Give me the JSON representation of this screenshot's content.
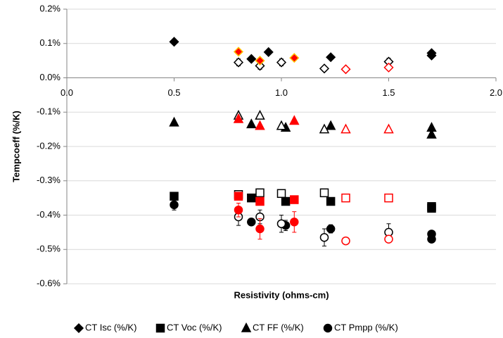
{
  "chart_data": {
    "type": "scatter",
    "x_label": "Resistivity (ohms-cm)",
    "y_label": "Tempcoeff (%/K)",
    "xlim": [
      0,
      2
    ],
    "ylim": [
      -0.6,
      0.2
    ],
    "xticks": [
      {
        "value": 0,
        "label": "0.0"
      },
      0.5,
      {
        "value": 1,
        "label": "1.0"
      },
      1.5,
      {
        "value": 2,
        "label": "2.0"
      }
    ],
    "yticks": [
      {
        "value": 0.2,
        "label": "0.2%"
      },
      {
        "value": 0.1,
        "label": "0.1%"
      },
      {
        "value": 0,
        "label": "0.0%"
      },
      {
        "value": -0.1,
        "label": "-0.1%"
      },
      {
        "value": -0.2,
        "label": "-0.2%"
      },
      {
        "value": -0.3,
        "label": "-0.3%"
      },
      {
        "value": -0.4,
        "label": "-0.4%"
      },
      {
        "value": -0.5,
        "label": "-0.5%"
      },
      {
        "value": -0.6,
        "label": "-0.6%"
      }
    ],
    "grid": true,
    "legend": "bottom",
    "series": [
      {
        "name": "CT Isc (%/K)",
        "marker": "diamond",
        "fill": "#000000",
        "stroke": "#000000",
        "x": [
          0.5,
          0.86,
          0.94,
          1.23,
          1.7,
          1.7
        ],
        "values": [
          0.105,
          0.055,
          0.075,
          0.06,
          0.072,
          0.065
        ]
      },
      {
        "name": "CT Voc (%/K)",
        "marker": "square",
        "fill": "#000000",
        "stroke": "#000000",
        "x": [
          0.5,
          0.86,
          1.02,
          1.23,
          1.7,
          1.7
        ],
        "values": [
          -0.345,
          -0.35,
          -0.36,
          -0.36,
          -0.375,
          -0.38
        ]
      },
      {
        "name": "CT FF (%/K)",
        "marker": "triangle",
        "fill": "#000000",
        "stroke": "#000000",
        "x": [
          0.5,
          0.86,
          1.02,
          1.23,
          1.7,
          1.7
        ],
        "values": [
          -0.13,
          -0.135,
          -0.145,
          -0.14,
          -0.145,
          -0.165
        ]
      },
      {
        "name": "CT Pmpp (%/K)",
        "marker": "circle",
        "fill": "#000000",
        "stroke": "#000000",
        "x": [
          0.5,
          0.86,
          1.02,
          1.23,
          1.7,
          1.7
        ],
        "values": [
          -0.37,
          -0.42,
          -0.43,
          -0.44,
          -0.455,
          -0.47
        ],
        "errors": [
          0.015,
          0.01,
          0.015,
          0.012,
          0.01,
          0.01
        ]
      },
      {
        "marker": "diamond",
        "fill": "#ffffff",
        "stroke": "#000000",
        "x": [
          0.8,
          0.9,
          1.0,
          1.2,
          1.5
        ],
        "values": [
          0.045,
          0.035,
          0.045,
          0.027,
          0.047
        ],
        "errors": [
          0.01,
          0.01,
          0.01,
          0.008,
          0.01
        ]
      },
      {
        "marker": "diamond",
        "fill": "#ff0000",
        "stroke": "#ffc000",
        "x": [
          0.8,
          0.9,
          1.06
        ],
        "values": [
          0.076,
          0.05,
          0.058
        ]
      },
      {
        "marker": "diamond",
        "fill": "#ffffff",
        "stroke": "#ff0000",
        "x": [
          1.3,
          1.5
        ],
        "values": [
          0.025,
          0.03
        ]
      },
      {
        "marker": "triangle",
        "fill": "#ffffff",
        "stroke": "#000000",
        "x": [
          0.8,
          0.9,
          1.0,
          1.2
        ],
        "values": [
          -0.11,
          -0.11,
          -0.14,
          -0.15
        ]
      },
      {
        "marker": "triangle",
        "fill": "#ff0000",
        "stroke": "#ff0000",
        "x": [
          0.8,
          0.9,
          1.06
        ],
        "values": [
          -0.12,
          -0.14,
          -0.125
        ]
      },
      {
        "marker": "triangle",
        "fill": "#ffffff",
        "stroke": "#ff0000",
        "x": [
          1.3,
          1.5
        ],
        "values": [
          -0.15,
          -0.15
        ]
      },
      {
        "marker": "square",
        "fill": "#ffffff",
        "stroke": "#000000",
        "x": [
          0.8,
          0.9,
          1.0,
          1.2
        ],
        "values": [
          -0.34,
          -0.335,
          -0.337,
          -0.335
        ]
      },
      {
        "marker": "square",
        "fill": "#ff0000",
        "stroke": "#ff0000",
        "x": [
          0.8,
          0.9,
          1.06
        ],
        "values": [
          -0.345,
          -0.36,
          -0.355
        ]
      },
      {
        "marker": "square",
        "fill": "#ffffff",
        "stroke": "#ff0000",
        "x": [
          1.3,
          1.5
        ],
        "values": [
          -0.35,
          -0.35
        ]
      },
      {
        "marker": "circle",
        "fill": "#ffffff",
        "stroke": "#000000",
        "x": [
          0.8,
          0.9,
          1.0,
          1.2,
          1.5
        ],
        "values": [
          -0.405,
          -0.405,
          -0.425,
          -0.465,
          -0.45
        ],
        "errors": [
          0.025,
          0.02,
          0.025,
          0.025,
          0.025
        ]
      },
      {
        "marker": "circle",
        "fill": "#ff0000",
        "stroke": "#ff0000",
        "x": [
          0.8,
          0.9,
          1.06
        ],
        "values": [
          -0.385,
          -0.44,
          -0.42
        ],
        "errors": [
          0.02,
          0.03,
          0.03
        ]
      },
      {
        "marker": "circle",
        "fill": "#ffffff",
        "stroke": "#ff0000",
        "x": [
          1.3,
          1.5
        ],
        "values": [
          -0.475,
          -0.47
        ]
      }
    ]
  }
}
